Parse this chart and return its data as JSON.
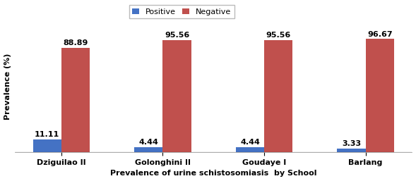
{
  "categories": [
    "Dziguilao II",
    "Golonghini II",
    "Goudaye I",
    "Barlang"
  ],
  "positive_values": [
    11.11,
    4.44,
    4.44,
    3.33
  ],
  "negative_values": [
    88.89,
    95.56,
    95.56,
    96.67
  ],
  "positive_color": "#4472C4",
  "negative_color": "#C0504D",
  "bar_width": 0.28,
  "xlabel": "Prevalence of urine schistosomiasis  by School",
  "ylabel": "Prevalence (%)",
  "ylim": [
    0,
    112
  ],
  "legend_labels": [
    "Positive",
    "Negative"
  ],
  "label_fontsize": 8,
  "tick_fontsize": 8,
  "annotation_fontsize": 8,
  "background_color": "#ffffff",
  "hatch_negative": "----",
  "legend_fontsize": 8,
  "figure_width": 5.89,
  "figure_height": 2.57,
  "dpi": 100
}
